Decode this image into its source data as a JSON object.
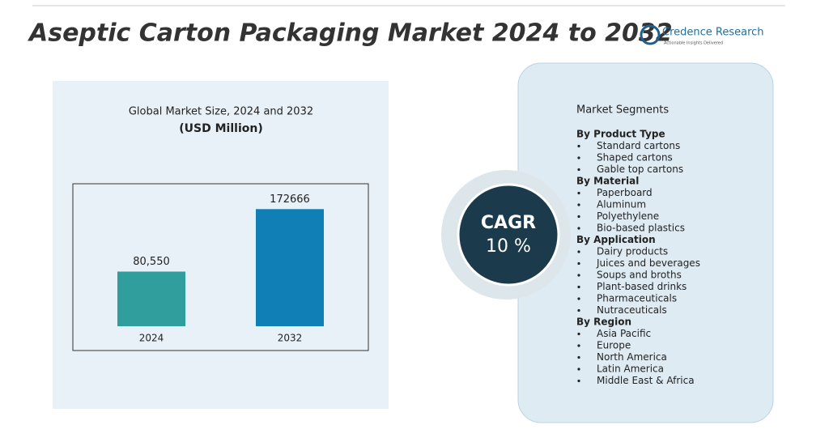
{
  "header": {
    "title": "Aseptic Carton Packaging Market 2024 to 2032",
    "brand": "Credence Research",
    "tagline": "Actionable Insights Delivered"
  },
  "chart_data": {
    "type": "bar",
    "title": "Global Market Size, 2024 and 2032",
    "subtitle": "(USD Million)",
    "categories": [
      "2024",
      "2032"
    ],
    "values": [
      80550,
      172666
    ],
    "value_labels": [
      "80,550",
      "172666"
    ],
    "colors": [
      "#2f9e9c",
      "#0f7fb5"
    ],
    "ylim": [
      0,
      210000
    ]
  },
  "cagr": {
    "label": "CAGR",
    "value": "10 %"
  },
  "segments": {
    "title": "Market Segments",
    "groups": [
      {
        "name": "By Product Type",
        "items": [
          "Standard cartons",
          "Shaped cartons",
          "Gable top cartons"
        ]
      },
      {
        "name": "By Material",
        "items": [
          "Paperboard",
          "Aluminum",
          "Polyethylene",
          "Bio-based plastics"
        ]
      },
      {
        "name": "By Application",
        "items": [
          "Dairy products",
          "Juices and beverages",
          "Soups and broths",
          "Plant-based drinks",
          "Pharmaceuticals",
          "Nutraceuticals"
        ]
      },
      {
        "name": "By Region",
        "items": [
          "Asia Pacific",
          "Europe",
          "North America",
          "Latin America",
          "Middle East & Africa"
        ]
      }
    ]
  }
}
